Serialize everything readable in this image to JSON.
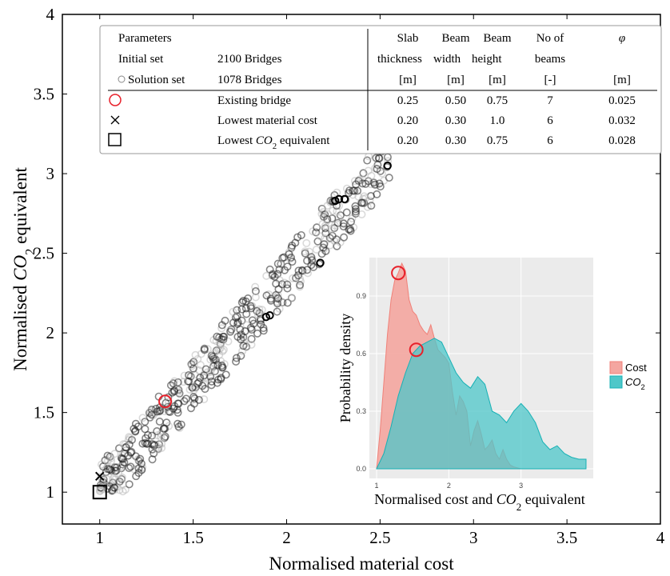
{
  "chart_data": [
    {
      "type": "scatter",
      "xlabel": "Normalised material cost",
      "ylabel_main": "Normalised ",
      "ylabel_var": "CO",
      "ylabel_sub": "2",
      "ylabel_tail": " equivalent",
      "xlim": [
        0.8,
        4.0
      ],
      "ylim": [
        0.8,
        4.0
      ],
      "xticks": [
        1,
        1.5,
        2,
        2.5,
        3,
        3.5,
        4
      ],
      "yticks": [
        1,
        1.5,
        2,
        2.5,
        3,
        3.5,
        4
      ],
      "xtick_labels": [
        "1",
        "1.5",
        "2",
        "2.5",
        "3",
        "3.5",
        "4"
      ],
      "ytick_labels": [
        "1",
        "1.5",
        "2",
        "2.5",
        "3",
        "3.5",
        "4"
      ],
      "highlighted_points": {
        "existing_bridge": {
          "x": 1.35,
          "y": 1.57,
          "color": "#e8202a"
        },
        "lowest_material_cost": {
          "x": 1.0,
          "y": 1.1
        },
        "lowest_co2": {
          "x": 1.0,
          "y": 1.0
        }
      },
      "dark_outlier_points": [
        {
          "x": 2.18,
          "y": 2.44
        },
        {
          "x": 1.89,
          "y": 2.1
        },
        {
          "x": 1.91,
          "y": 2.11
        },
        {
          "x": 2.26,
          "y": 2.83
        },
        {
          "x": 2.28,
          "y": 2.84
        },
        {
          "x": 2.31,
          "y": 2.84
        },
        {
          "x": 2.54,
          "y": 3.05
        }
      ],
      "series": [
        {
          "name": "Initial set",
          "count_label": "2100 Bridges",
          "color": "#bbbbbb"
        },
        {
          "name": "Solution set",
          "count_label": "1078 Bridges",
          "color": "#222222"
        }
      ],
      "legend": {
        "placement": "top",
        "header_left": "Parameters",
        "columns": [
          {
            "line1": "Slab",
            "line2": "thickness",
            "unit": "[m]"
          },
          {
            "line1": "Beam",
            "line2": "width",
            "unit": "[m]"
          },
          {
            "line1": "Beam",
            "line2": "height",
            "unit": "[m]"
          },
          {
            "line1": "No of",
            "line2": "beams",
            "unit": "[-]"
          },
          {
            "line1": "φ",
            "line2": "",
            "unit": "[m]"
          }
        ],
        "rows": [
          {
            "label": "Existing bridge",
            "values": [
              "0.25",
              "0.50",
              "0.75",
              "7",
              "0.025"
            ]
          },
          {
            "label": "Lowest material cost",
            "values": [
              "0.20",
              "0.30",
              "1.0",
              "6",
              "0.032"
            ]
          },
          {
            "label": "Lowest ",
            "label_var": "CO",
            "label_sub": "2",
            "label_tail": " equivalent",
            "values": [
              "0.20",
              "0.30",
              "0.75",
              "6",
              "0.028"
            ]
          }
        ]
      },
      "grid": false
    },
    {
      "type": "area",
      "xlabel": "Normalised cost and ",
      "xlabel_var": "CO",
      "xlabel_sub": "2",
      "xlabel_tail": " equivalent",
      "ylabel": "Probability density",
      "xlim": [
        0.9,
        4.0
      ],
      "ylim": [
        -0.05,
        1.1
      ],
      "xticks": [
        1,
        2,
        3
      ],
      "yticks": [
        0.0,
        0.3,
        0.6,
        0.9
      ],
      "xtick_labels": [
        "1",
        "2",
        "3"
      ],
      "ytick_labels": [
        "0.0",
        "0.3",
        "0.6",
        "0.9"
      ],
      "background": "#ebebeb",
      "legend_placement": "right",
      "series": [
        {
          "name": "Cost",
          "fill": "#f4a6a0",
          "stroke": "#f08078",
          "x": [
            1.0,
            1.05,
            1.1,
            1.15,
            1.2,
            1.25,
            1.3,
            1.35,
            1.4,
            1.45,
            1.5,
            1.55,
            1.6,
            1.65,
            1.7,
            1.75,
            1.8,
            1.85,
            1.9,
            1.95,
            2.0,
            2.05,
            2.1,
            2.15,
            2.2,
            2.25,
            2.3,
            2.35,
            2.4,
            2.45,
            2.5,
            2.55,
            2.6,
            2.65,
            2.7,
            2.75,
            2.8,
            2.85,
            2.9,
            2.95,
            3.0
          ],
          "y": [
            0.0,
            0.2,
            0.45,
            0.7,
            0.88,
            0.98,
            1.02,
            1.07,
            1.03,
            0.88,
            0.82,
            0.8,
            0.75,
            0.72,
            0.7,
            0.75,
            0.68,
            0.62,
            0.6,
            0.58,
            0.55,
            0.4,
            0.28,
            0.38,
            0.35,
            0.3,
            0.12,
            0.2,
            0.25,
            0.18,
            0.1,
            0.12,
            0.15,
            0.08,
            0.05,
            0.1,
            0.05,
            0.02,
            0.01,
            0.005,
            0.0
          ]
        },
        {
          "name": "CO₂",
          "fill": "#4ec7c9",
          "stroke": "#17b1b5",
          "x": [
            1.0,
            1.1,
            1.2,
            1.3,
            1.4,
            1.5,
            1.6,
            1.7,
            1.8,
            1.9,
            2.0,
            2.1,
            2.2,
            2.3,
            2.4,
            2.5,
            2.6,
            2.7,
            2.8,
            2.9,
            3.0,
            3.1,
            3.2,
            3.3,
            3.4,
            3.5,
            3.6,
            3.7,
            3.8,
            3.9
          ],
          "y": [
            0.0,
            0.08,
            0.22,
            0.38,
            0.5,
            0.6,
            0.64,
            0.66,
            0.68,
            0.66,
            0.58,
            0.5,
            0.45,
            0.42,
            0.48,
            0.44,
            0.3,
            0.28,
            0.24,
            0.3,
            0.34,
            0.3,
            0.24,
            0.14,
            0.1,
            0.12,
            0.08,
            0.06,
            0.05,
            0.05
          ]
        }
      ],
      "existing_markers": [
        {
          "x": 1.3,
          "y": 1.02,
          "color": "#e8202a"
        },
        {
          "x": 1.55,
          "y": 0.62,
          "color": "#e8202a"
        }
      ],
      "legend": [
        {
          "label": "Cost",
          "color": "#f4a6a0"
        },
        {
          "label": "CO",
          "sub": "2",
          "color": "#4ec7c9"
        }
      ]
    }
  ]
}
